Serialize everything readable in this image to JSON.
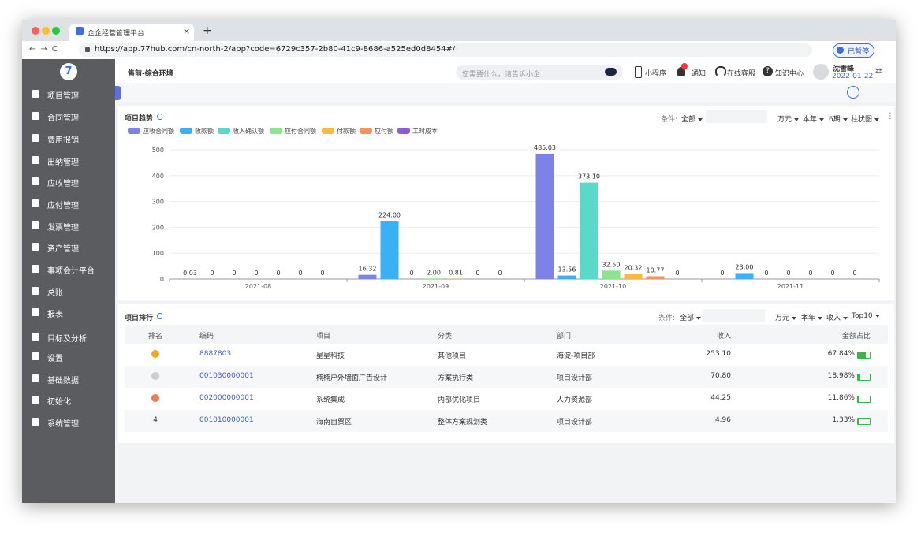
{
  "browser": {
    "tab_title": "企企经营管理平台",
    "url": "https://app.77hub.com/cn-north-2/app?code=6729c357-2b80-41c9-8686-a525ed0d8454#/",
    "paused": "已暂停"
  },
  "header": {
    "env": "售前-综合环境",
    "search_placeholder": "您需要什么，请告诉小企",
    "mini_program": "小程序",
    "notify": "通知",
    "service": "在线客服",
    "knowledge": "知识中心",
    "user": "沈雪峰",
    "date": "2022-01-22"
  },
  "sidebar": [
    "项目管理",
    "合同管理",
    "费用报销",
    "出纳管理",
    "应收管理",
    "应付管理",
    "发票管理",
    "资产管理",
    "事项会计平台",
    "总账",
    "报表",
    "目标及分析",
    "设置",
    "基础数据",
    "初始化",
    "系统管理"
  ],
  "trend_filters": {
    "label": "条件:",
    "scope": "全部",
    "unit": "万元",
    "year": "本年",
    "periods": "6期",
    "kind": "柱状图"
  },
  "chart_data": {
    "type": "bar",
    "title": "项目趋势",
    "categories": [
      "2021-08",
      "2021-09",
      "2021-10",
      "2021-11"
    ],
    "ylim": [
      0,
      500
    ],
    "yticks": [
      0,
      100,
      200,
      300,
      400,
      500
    ],
    "grid": true,
    "series": [
      {
        "name": "应收合同额",
        "color": "#7b83e8",
        "values": [
          0.03,
          16.32,
          485.03,
          0
        ],
        "value_labels": [
          "0.03",
          "16.32",
          "485.03",
          "0"
        ]
      },
      {
        "name": "收款额",
        "color": "#3bb0f5",
        "values": [
          0,
          224,
          13.56,
          23
        ],
        "value_labels": [
          "0",
          "224.00",
          "13.56",
          "23.00"
        ]
      },
      {
        "name": "收入确认额",
        "color": "#5ad8c8",
        "values": [
          0,
          0,
          373.1,
          0
        ],
        "value_labels": [
          "0",
          "0",
          "373.10",
          "0"
        ]
      },
      {
        "name": "应付合同额",
        "color": "#8ee38e",
        "values": [
          0,
          2,
          32.5,
          0
        ],
        "value_labels": [
          "0",
          "2.00",
          "32.50",
          "0"
        ]
      },
      {
        "name": "付款额",
        "color": "#f7b94a",
        "values": [
          0,
          0.81,
          20.32,
          0
        ],
        "value_labels": [
          "0",
          "0.81",
          "20.32",
          "0"
        ]
      },
      {
        "name": "应付额",
        "color": "#f59262",
        "values": [
          0,
          0,
          10.77,
          0
        ],
        "value_labels": [
          "0",
          "0",
          "10.77",
          "0"
        ]
      },
      {
        "name": "工时成本",
        "color": "#8e5cd6",
        "values": [
          0,
          0,
          0,
          0
        ],
        "value_labels": [
          "0",
          "0",
          "0",
          "0"
        ]
      }
    ]
  },
  "ranking": {
    "title": "项目排行",
    "filters": {
      "label": "条件:",
      "scope": "全部",
      "unit": "万元",
      "year": "本年",
      "metric": "收入",
      "top": "Top10"
    },
    "columns": [
      "排名",
      "编码",
      "项目",
      "分类",
      "部门",
      "收入",
      "金额占比"
    ],
    "rows": [
      {
        "code": "8887803",
        "project": "星星科技",
        "category": "其他项目",
        "dept": "海淀-项目部",
        "revenue": "253.10",
        "share": {
          "value": 67.84,
          "label": "67.84%"
        }
      },
      {
        "code": "001030000001",
        "project": "楠楠户外墙面广告设计",
        "category": "方案执行类",
        "dept": "项目设计部",
        "revenue": "70.80",
        "share": {
          "value": 18.98,
          "label": "18.98%"
        }
      },
      {
        "code": "002000000001",
        "project": "系统集成",
        "category": "内部优化项目",
        "dept": "人力资源部",
        "revenue": "44.25",
        "share": {
          "value": 11.86,
          "label": "11.86%"
        }
      },
      {
        "rank": "4",
        "code": "001010000001",
        "project": "海南自贸区",
        "category": "整体方案规划类",
        "dept": "项目设计部",
        "revenue": "4.96",
        "share": {
          "value": 1.33,
          "label": "1.33%"
        }
      }
    ]
  }
}
